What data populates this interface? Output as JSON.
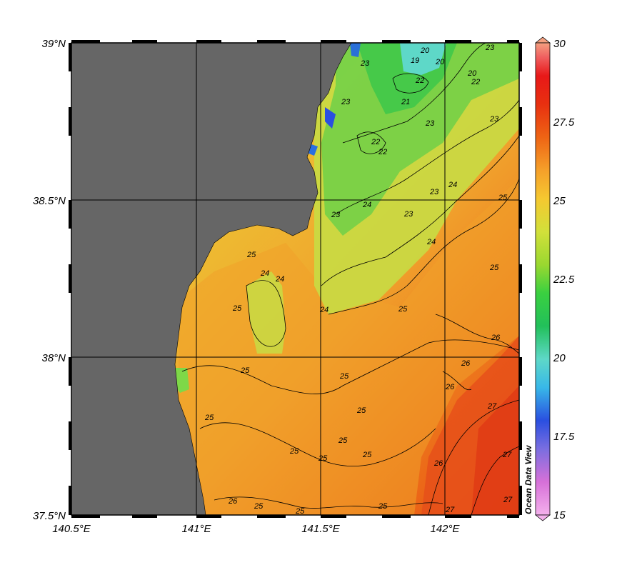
{
  "map": {
    "lat_ticks": [
      "39°N",
      "38.5°N",
      "38°N",
      "37.5°N"
    ],
    "lon_ticks": [
      "140.5°E",
      "141°E",
      "141.5°E",
      "142°E"
    ],
    "extent": {
      "lon_min": 140.5,
      "lon_max": 142.3,
      "lat_min": 37.5,
      "lat_max": 39.0
    },
    "land_color": "#666666",
    "contour_labels": [
      "20",
      "19",
      "20",
      "20",
      "21",
      "22",
      "22",
      "23",
      "23",
      "23",
      "23",
      "23",
      "22",
      "22",
      "23",
      "24",
      "24",
      "23",
      "23",
      "24",
      "25",
      "25",
      "24",
      "24",
      "25",
      "24",
      "25",
      "25",
      "26",
      "26",
      "26",
      "25",
      "25",
      "25",
      "25",
      "25",
      "27",
      "25",
      "26",
      "27",
      "27",
      "27",
      "25",
      "25",
      "26",
      "25",
      "25",
      "25"
    ]
  },
  "colorbar": {
    "ticks": [
      "30",
      "27.5",
      "25",
      "22.5",
      "20",
      "17.5",
      "15"
    ],
    "min": 15,
    "max": 30,
    "colors": [
      "#f4b0ec",
      "#d670d8",
      "#7a6ee0",
      "#2a4fe0",
      "#38b8e8",
      "#5ed8c8",
      "#22c05a",
      "#3ad040",
      "#9ad830",
      "#d2e03a",
      "#f5c830",
      "#f5a02a",
      "#ee6414",
      "#e83010",
      "#e81818",
      "#f06060",
      "#f4a080"
    ]
  },
  "credit": "Ocean Data View"
}
